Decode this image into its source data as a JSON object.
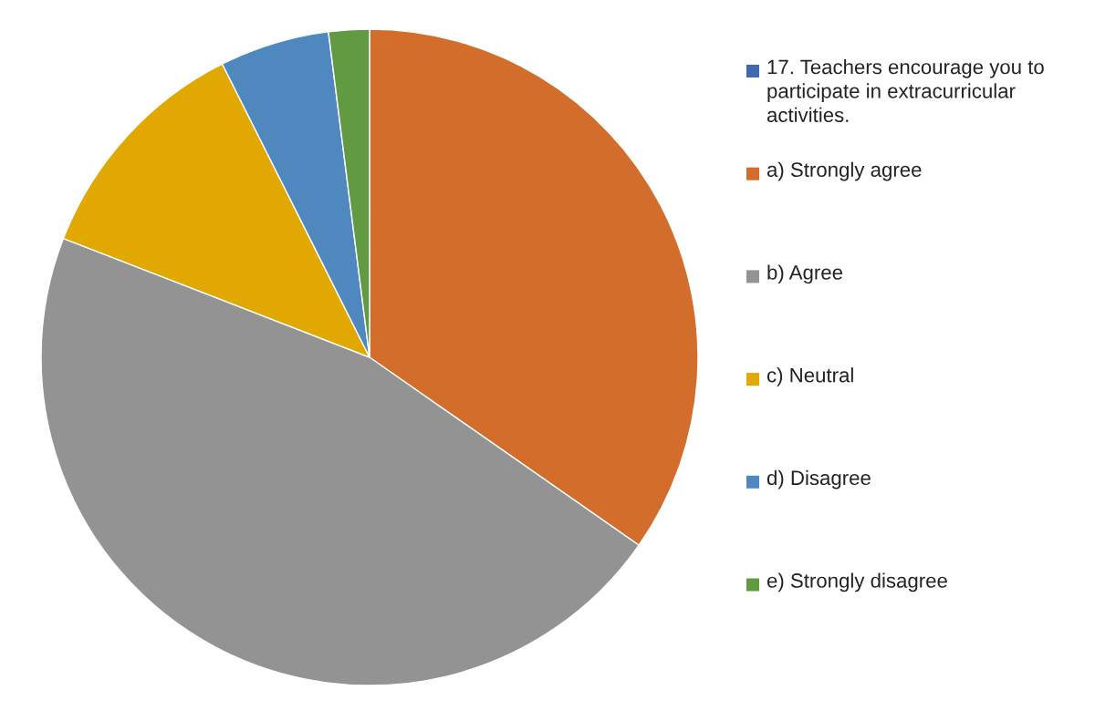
{
  "chart_data": {
    "type": "pie",
    "categories": [
      "17. Teachers encourage you to participate in extracurricular activities.",
      "a) Strongly agree",
      "b) Agree",
      "c) Neutral",
      "d) Disagree",
      "e) Strongly disagree"
    ],
    "values": [
      0,
      34.7,
      46.2,
      11.7,
      5.4,
      2.0
    ],
    "colors": [
      "#4068b0",
      "#d36d2b",
      "#939393",
      "#e0a800",
      "#4f88bf",
      "#629a41"
    ],
    "legend": "right"
  }
}
